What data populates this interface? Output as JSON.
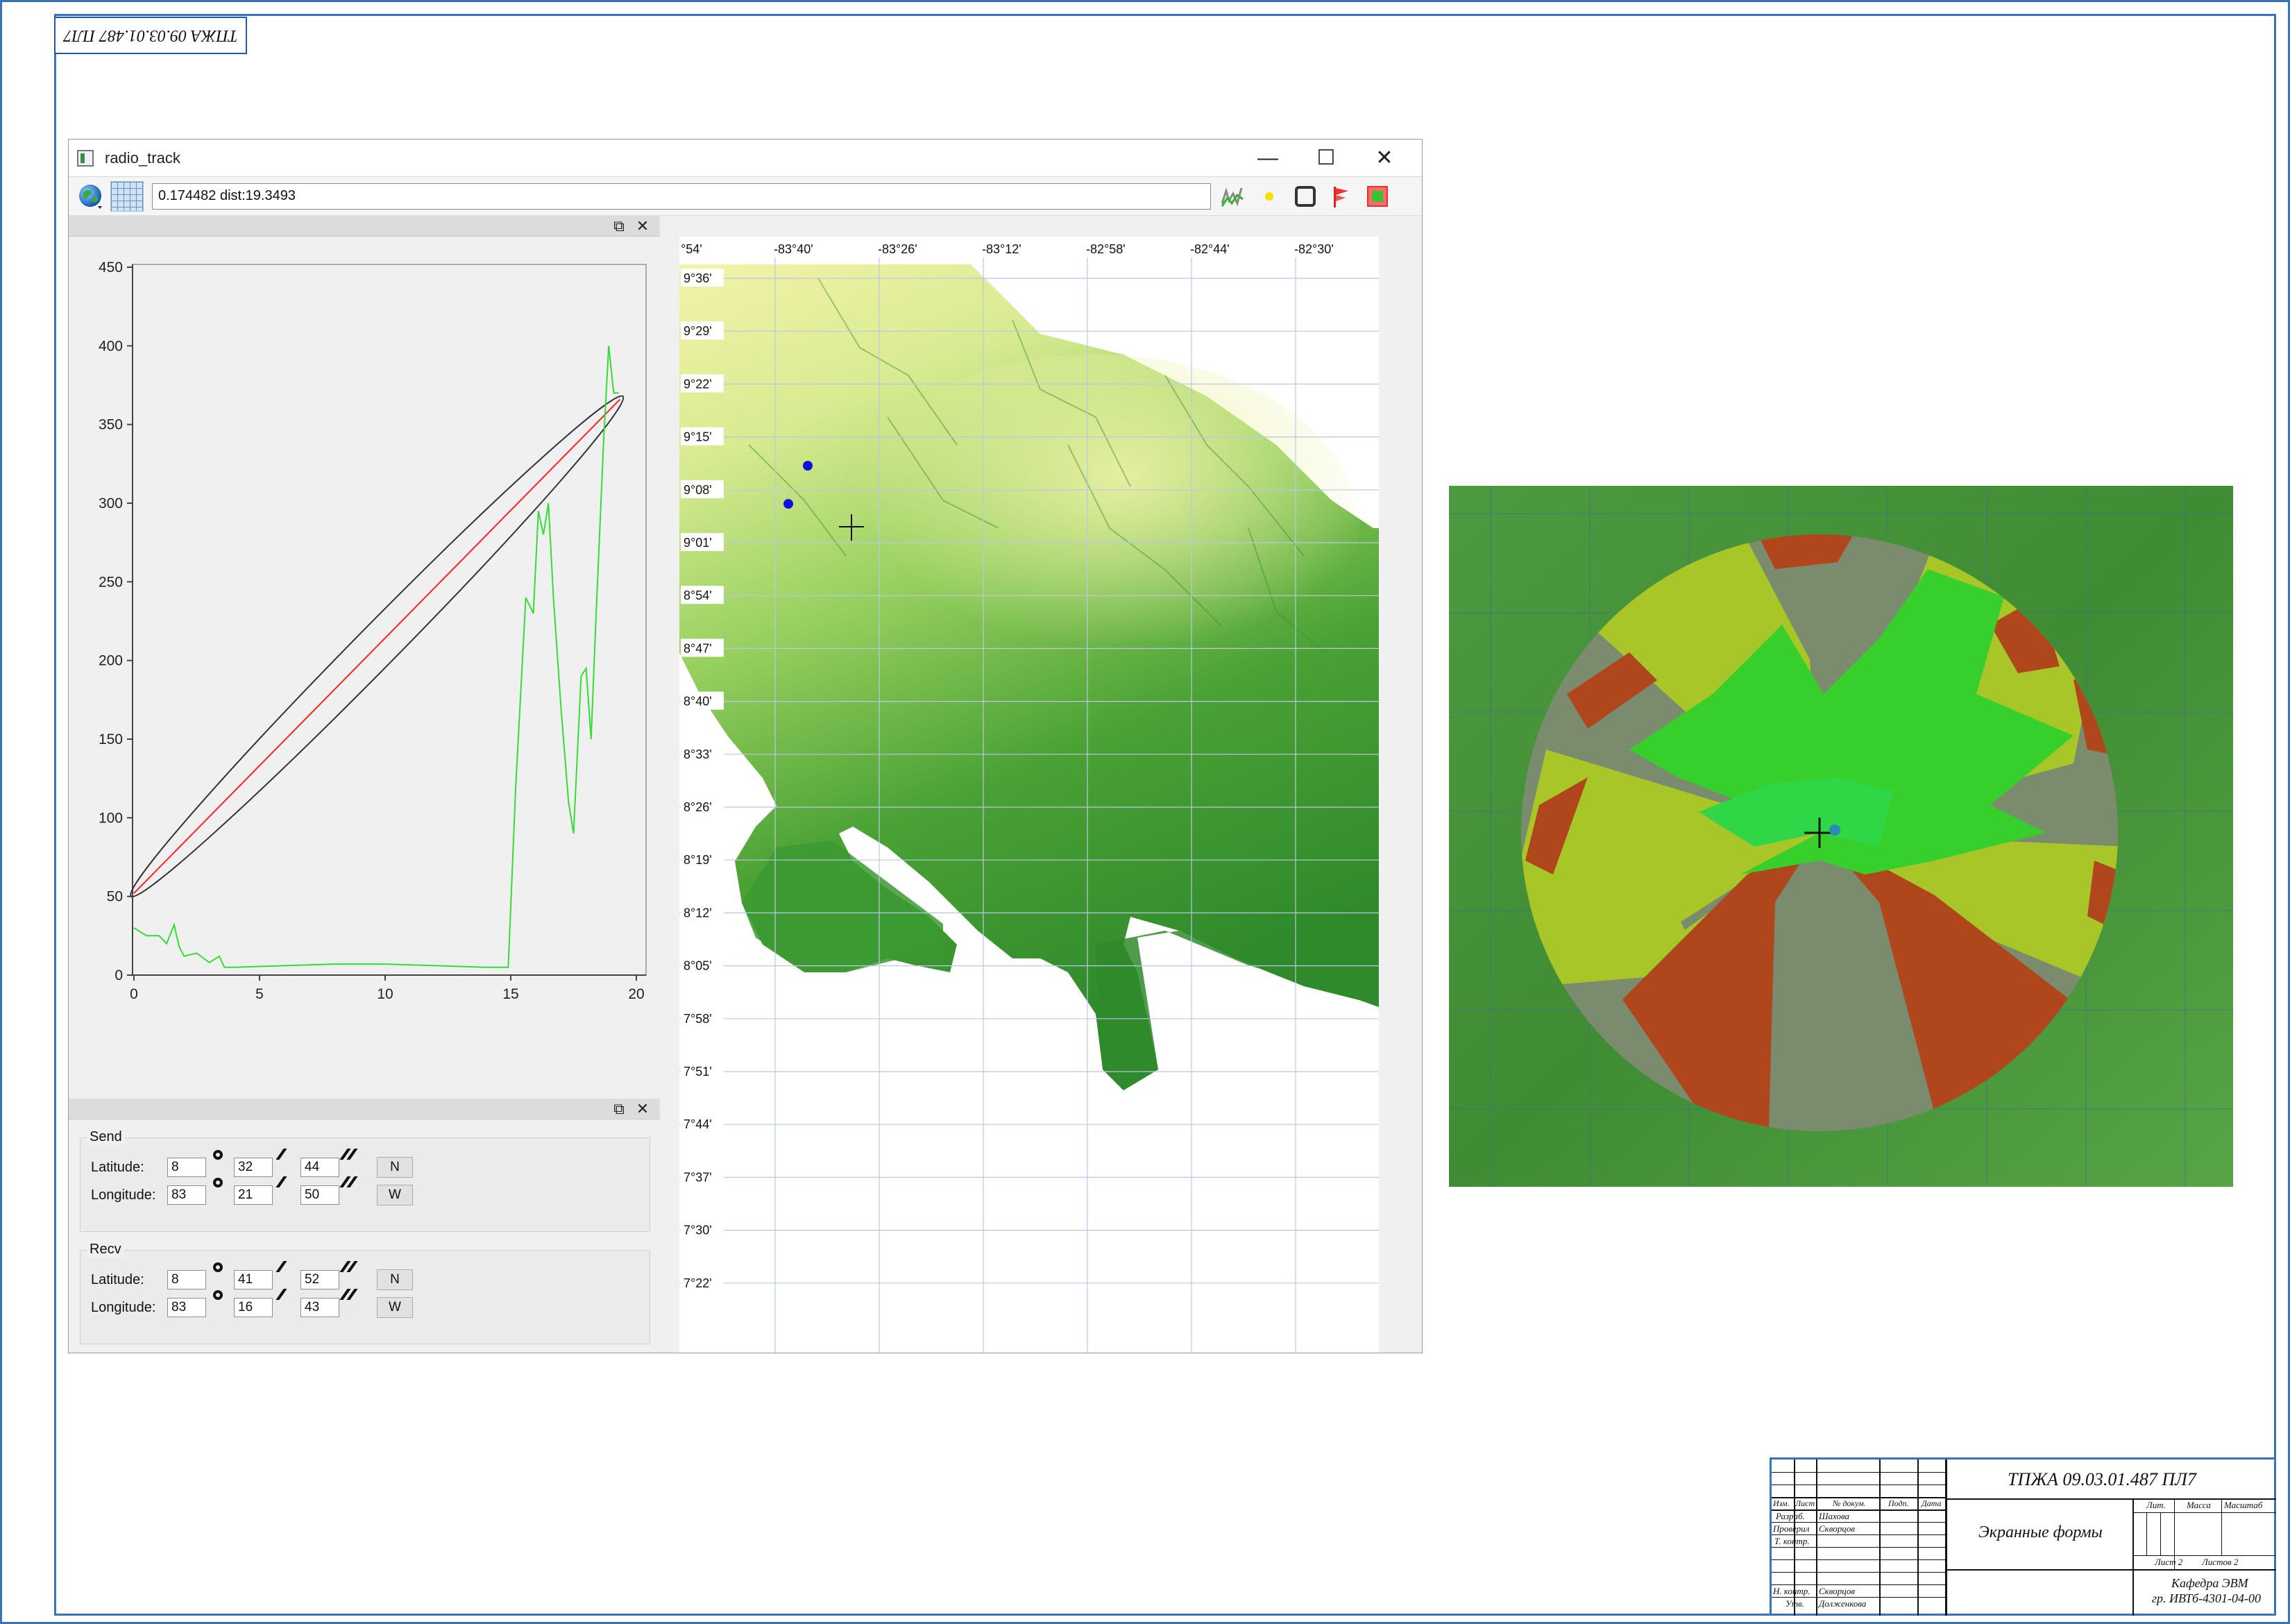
{
  "document": {
    "stamp_code_rotated": "ТПЖА 09.03.01.487 ПЛ7"
  },
  "window": {
    "title": "radio_track",
    "min_glyph": "—",
    "max_glyph": "☐",
    "close_glyph": "✕"
  },
  "toolbar": {
    "icons": [
      "globe-icon",
      "grid-icon",
      "elevation-graph-icon",
      "point-icon",
      "frame-icon",
      "flag-icon",
      "map-layer-icon"
    ],
    "status_text": "0.174482 dist:19.3493"
  },
  "dock": {
    "float_glyph": "⧉",
    "close_glyph": "✕"
  },
  "profile_chart": {
    "y_ticks": [
      "450",
      "400",
      "350",
      "300",
      "250",
      "200",
      "150",
      "100",
      "50",
      "0"
    ],
    "x_ticks": [
      "0",
      "5",
      "10",
      "15",
      "20"
    ]
  },
  "chart_data": {
    "type": "line",
    "xlim": [
      0,
      20
    ],
    "ylim": [
      0,
      450
    ],
    "x_ticks": [
      0,
      5,
      10,
      15,
      20
    ],
    "y_ticks": [
      0,
      50,
      100,
      150,
      200,
      250,
      300,
      350,
      400,
      450
    ],
    "series": [
      {
        "color": "#ff2222",
        "x": [
          0,
          19.35
        ],
        "y": [
          52,
          366
        ]
      },
      {
        "color": "#33dd33",
        "x": [
          0,
          0.5,
          1.0,
          1.3,
          1.6,
          1.8,
          2.0,
          2.5,
          3.0,
          3.4,
          3.6,
          4.0,
          6,
          8,
          10,
          12,
          14,
          14.9,
          15.2,
          15.6,
          15.9,
          16.1,
          16.3,
          16.5,
          16.7,
          17.0,
          17.3,
          17.5,
          17.8,
          18.0,
          18.2,
          18.4,
          18.7,
          18.9,
          19.1,
          19.3
        ],
        "y": [
          30,
          25,
          25,
          20,
          32,
          18,
          12,
          14,
          8,
          12,
          5,
          5,
          6,
          7,
          7,
          6,
          5,
          5,
          120,
          240,
          230,
          295,
          280,
          300,
          240,
          170,
          110,
          90,
          190,
          195,
          150,
          230,
          340,
          400,
          370,
          370
        ]
      },
      {
        "color": "#333333",
        "type": "fresnel-ellipse",
        "x": [
          0,
          19.35
        ],
        "y": [
          52,
          366
        ]
      }
    ]
  },
  "coords": {
    "send": {
      "title": "Send",
      "lat_label": "Latitude:",
      "lat_deg": "8",
      "lat_min": "32",
      "lat_sec": "44",
      "lat_hem": "N",
      "lon_label": "Longitude:",
      "lon_deg": "83",
      "lon_min": "21",
      "lon_sec": "50",
      "lon_hem": "W"
    },
    "recv": {
      "title": "Recv",
      "lat_label": "Latitude:",
      "lat_deg": "8",
      "lat_min": "41",
      "lat_sec": "52",
      "lat_hem": "N",
      "lon_label": "Longitude:",
      "lon_deg": "83",
      "lon_min": "16",
      "lon_sec": "43",
      "lon_hem": "W"
    }
  },
  "map": {
    "lon_labels": [
      "°54'",
      "-83°40'",
      "-83°26'",
      "-83°12'",
      "-82°58'",
      "-82°44'",
      "-82°30'"
    ],
    "lat_labels": [
      "9°36'",
      "9°29'",
      "9°22'",
      "9°15'",
      "9°08'",
      "9°01'",
      "8°54'",
      "8°47'",
      "8°40'",
      "8°33'",
      "8°26'",
      "8°19'",
      "8°12'",
      "8°05'",
      "7°58'",
      "7°51'",
      "7°44'",
      "7°37'",
      "7°30'",
      "7°22'"
    ],
    "marker_color": "#1111dd"
  },
  "title_block": {
    "doc_code": "ТПЖА 09.03.01.487 ПЛ7",
    "doc_name": "Экранные формы",
    "dept": "Кафедра ЭВМ",
    "group": "гр. ИВТб-4301-04-00",
    "col_izm": "Изм.",
    "col_list": "Лист",
    "col_docnum": "№ докум.",
    "col_sign": "Подп.",
    "col_date": "Дата",
    "razrab": "Разраб.",
    "razrab_name": "Шахова",
    "prover": "Проверил",
    "prover_name": "Скворцов",
    "tkontr": "Т. контр.",
    "nkontr": "Н. контр.",
    "nkontr_name": "Скворцов",
    "utv": "Утв.",
    "utv_name": "Долженкова",
    "lit": "Лит.",
    "massa": "Масса",
    "masshtab": "Масштаб",
    "sheet": "Лист 2",
    "sheets": "Листов 2"
  }
}
